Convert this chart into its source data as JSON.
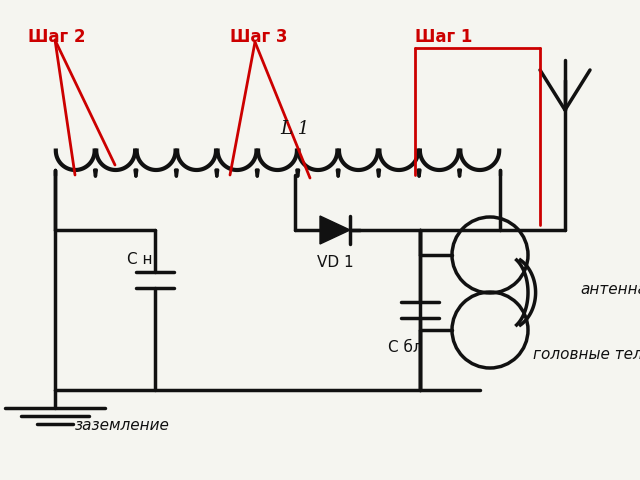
{
  "bg_color": "#f5f5f0",
  "line_color": "#111111",
  "red_color": "#cc0000",
  "label_L1": "L 1",
  "label_VD1": "VD 1",
  "label_CH": "C н",
  "label_CBL": "C бл",
  "label_antenna": "антенна",
  "label_ground": "заземление",
  "label_headphones": "головные телефоны",
  "label_shag1": "Шаг 1",
  "label_shag2": "Шаг 2",
  "label_shag3": "Шаг 3",
  "figsize": [
    6.4,
    4.8
  ],
  "dpi": 100
}
